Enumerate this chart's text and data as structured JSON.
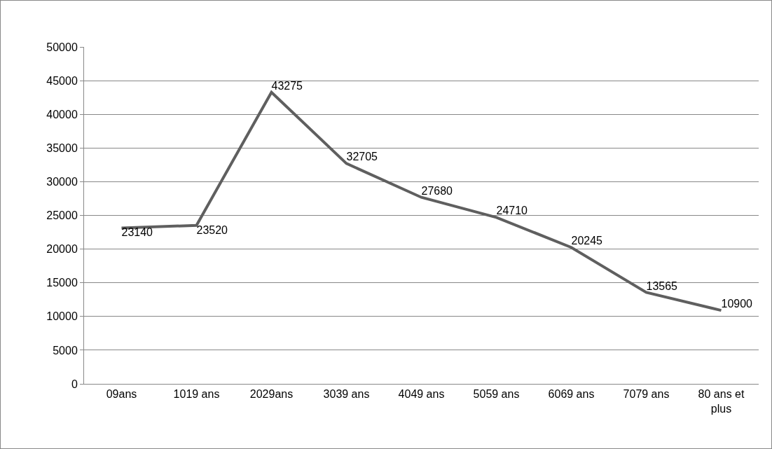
{
  "chart_data": {
    "type": "line",
    "categories": [
      "09ans",
      "1019 ans",
      "2029ans",
      "3039 ans",
      "4049 ans",
      "5059 ans",
      "6069 ans",
      "7079 ans",
      "80 ans et plus"
    ],
    "series": [
      {
        "color": "#5f5f5f",
        "values": [
          23140,
          23520,
          43275,
          32705,
          27680,
          24710,
          20245,
          13565,
          10900
        ]
      }
    ],
    "ylim": [
      0,
      50000
    ],
    "yticks": [
      0,
      5000,
      10000,
      15000,
      20000,
      25000,
      30000,
      35000,
      40000,
      45000,
      50000
    ],
    "grid": "y",
    "legend": false,
    "marker": "none",
    "line_style": "solid",
    "data_labels": true
  }
}
